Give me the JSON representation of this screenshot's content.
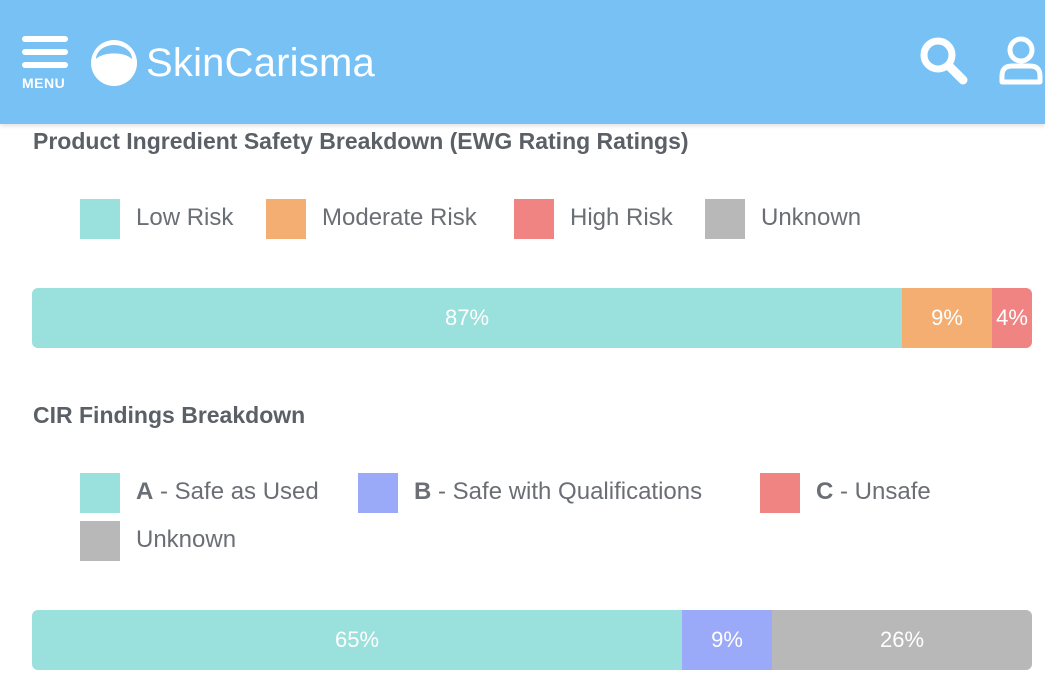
{
  "header": {
    "menu_label": "MENU",
    "brand": "SkinCarisma",
    "background": "#77c1f5",
    "icons": [
      "menu-icon",
      "logo-icon",
      "search-icon",
      "user-icon"
    ]
  },
  "ewg": {
    "title": "Product Ingredient Safety Breakdown (EWG Rating Ratings)",
    "legend": [
      {
        "label": "Low Risk",
        "color": "#9ae0dc"
      },
      {
        "label": "Moderate Risk",
        "color": "#f4ae72"
      },
      {
        "label": "High Risk",
        "color": "#f08482"
      },
      {
        "label": "Unknown",
        "color": "#b8b8b8"
      }
    ],
    "bar": [
      {
        "label": "87%",
        "value": 87,
        "color": "#9ae0dc"
      },
      {
        "label": "9%",
        "value": 9,
        "color": "#f4ae72"
      },
      {
        "label": "4%",
        "value": 4,
        "color": "#f08482"
      }
    ]
  },
  "cir": {
    "title": "CIR Findings Breakdown",
    "legend": [
      {
        "letter": "A",
        "label": " - Safe as Used",
        "color": "#9ae0dc"
      },
      {
        "letter": "B",
        "label": " - Safe with Qualifications",
        "color": "#9aaaf9"
      },
      {
        "letter": "C",
        "label": " - Unsafe",
        "color": "#f08482"
      },
      {
        "letter": "",
        "label": "Unknown",
        "color": "#b8b8b8"
      }
    ],
    "bar": [
      {
        "label": "65%",
        "value": 65,
        "color": "#9ae0dc"
      },
      {
        "label": "9%",
        "value": 9,
        "color": "#9aaaf9"
      },
      {
        "label": "26%",
        "value": 26,
        "color": "#b8b8b8"
      }
    ]
  }
}
